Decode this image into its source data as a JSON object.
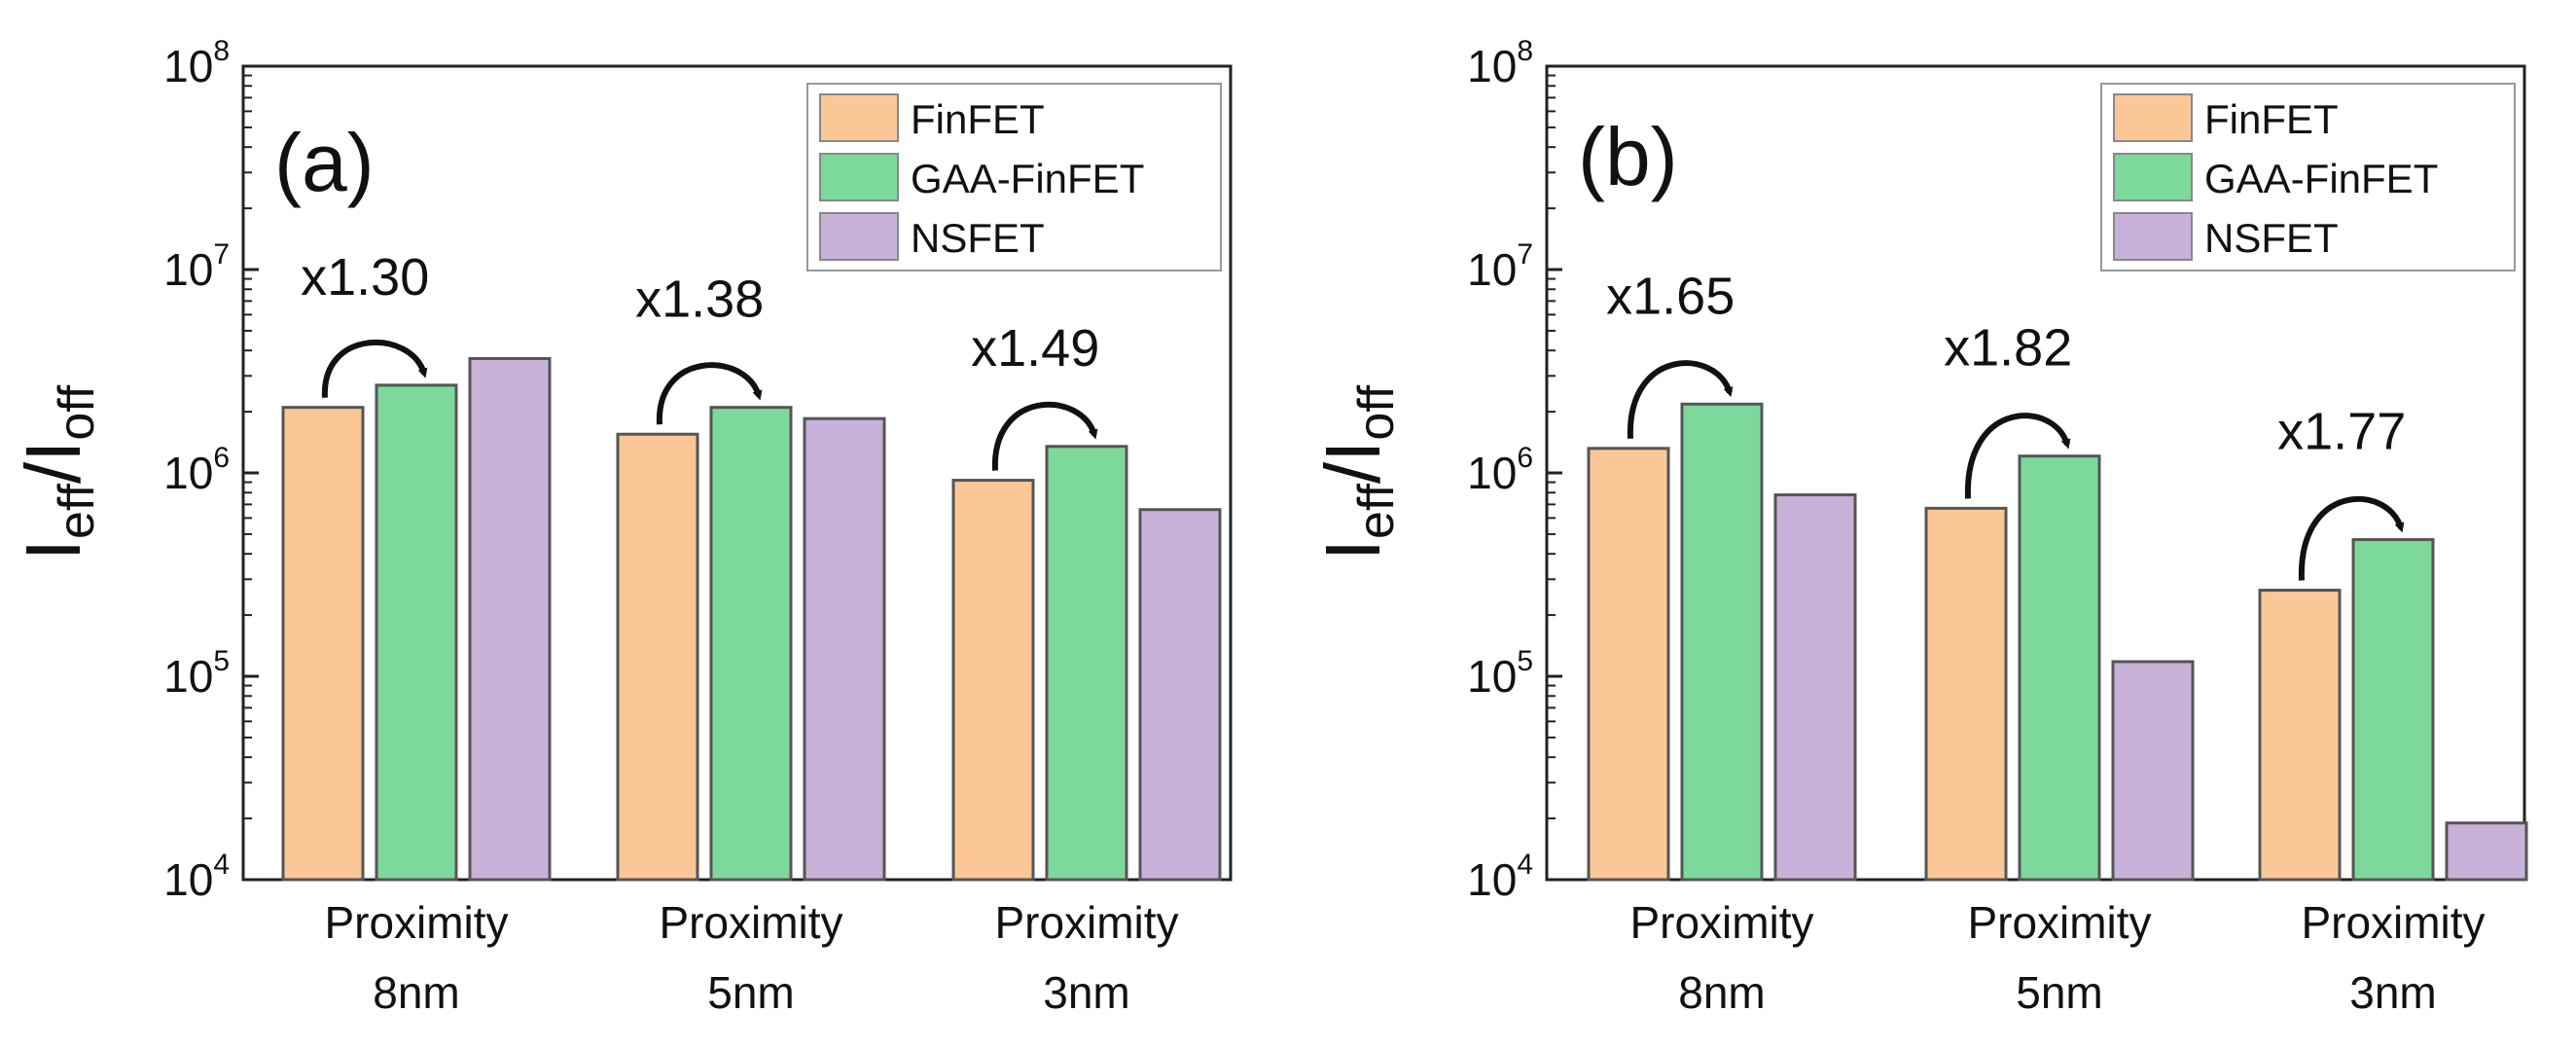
{
  "chart_data": [
    {
      "type": "bar",
      "panel_label": "(a)",
      "ylabel": {
        "main": "I",
        "sub1": "eff",
        "sep": "/I",
        "sub2": "off"
      },
      "yscale": "log",
      "ylim": [
        10000,
        100000000
      ],
      "yticks": [
        {
          "base": "10",
          "exp": "4"
        },
        {
          "base": "10",
          "exp": "5"
        },
        {
          "base": "10",
          "exp": "6"
        },
        {
          "base": "10",
          "exp": "7"
        },
        {
          "base": "10",
          "exp": "8"
        }
      ],
      "categories": [
        [
          "Proximity",
          "8nm"
        ],
        [
          "Proximity",
          "5nm"
        ],
        [
          "Proximity",
          "3nm"
        ]
      ],
      "series": [
        {
          "name": "FinFET",
          "color": "#fbc796",
          "values": [
            2100000,
            1550000,
            920000
          ]
        },
        {
          "name": "GAA-FinFET",
          "color": "#7dd89c",
          "values": [
            2700000,
            2100000,
            1350000
          ]
        },
        {
          "name": "NSFET",
          "color": "#c9b2da",
          "values": [
            3650000,
            1850000,
            660000
          ]
        }
      ],
      "annotations": [
        "x1.30",
        "x1.38",
        "x1.49"
      ],
      "legend": "top-right"
    },
    {
      "type": "bar",
      "panel_label": "(b)",
      "ylabel": {
        "main": "I",
        "sub1": "eff",
        "sep": "/I",
        "sub2": "off"
      },
      "yscale": "log",
      "ylim": [
        10000,
        100000000
      ],
      "yticks": [
        {
          "base": "10",
          "exp": "4"
        },
        {
          "base": "10",
          "exp": "5"
        },
        {
          "base": "10",
          "exp": "6"
        },
        {
          "base": "10",
          "exp": "7"
        },
        {
          "base": "10",
          "exp": "8"
        }
      ],
      "categories": [
        [
          "Proximity",
          "8nm"
        ],
        [
          "Proximity",
          "5nm"
        ],
        [
          "Proximity",
          "3nm"
        ]
      ],
      "series": [
        {
          "name": "FinFET",
          "color": "#fbc796",
          "values": [
            1320000,
            670000,
            265000
          ]
        },
        {
          "name": "GAA-FinFET",
          "color": "#7dd89c",
          "values": [
            2180000,
            1210000,
            470000
          ]
        },
        {
          "name": "NSFET",
          "color": "#c9b2da",
          "values": [
            780000,
            118000,
            19000
          ]
        }
      ],
      "annotations": [
        "x1.65",
        "x1.82",
        "x1.77"
      ],
      "legend": "top-right"
    }
  ]
}
